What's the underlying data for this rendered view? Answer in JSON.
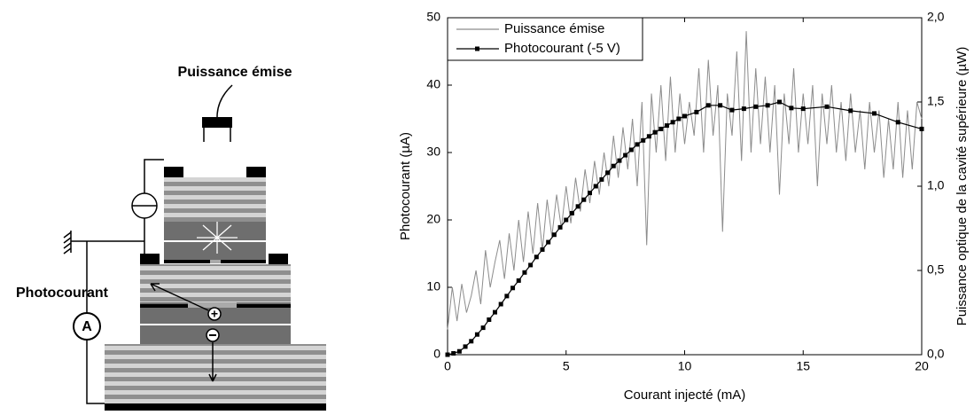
{
  "diagram": {
    "top_label": "Puissance émise",
    "left_label": "Photocourant",
    "meter_label": "A"
  },
  "chart_data": {
    "type": "line",
    "xlabel": "Courant injecté (mA)",
    "ylabel": "Photocourant (µA)",
    "y2label": "Puissance optique de la cavité supérieure (µW)",
    "xlim": [
      0,
      20
    ],
    "xticks": [
      0,
      5,
      10,
      15,
      20
    ],
    "ylim": [
      0,
      50
    ],
    "yticks": [
      0,
      10,
      20,
      30,
      40,
      50
    ],
    "y2lim": [
      0,
      2
    ],
    "y2ticks": [
      {
        "value": 0,
        "label": "0,0"
      },
      {
        "value": 0.5,
        "label": "0,5"
      },
      {
        "value": 1,
        "label": "1,0"
      },
      {
        "value": 1.5,
        "label": "1,5"
      },
      {
        "value": 2,
        "label": "2,0"
      }
    ],
    "legend": "upper left",
    "series": [
      {
        "name": "Puissance émise",
        "color": "#8c8c8c",
        "axis": "y2",
        "marker": false,
        "x": [
          0,
          0.2,
          0.4,
          0.6,
          0.8,
          1,
          1.2,
          1.4,
          1.6,
          1.8,
          2,
          2.2,
          2.4,
          2.6,
          2.8,
          3,
          3.2,
          3.4,
          3.6,
          3.8,
          4,
          4.2,
          4.4,
          4.6,
          4.8,
          5,
          5.2,
          5.4,
          5.6,
          5.8,
          6,
          6.2,
          6.4,
          6.6,
          6.8,
          7,
          7.2,
          7.4,
          7.6,
          7.8,
          8,
          8.2,
          8.4,
          8.6,
          8.8,
          9,
          9.2,
          9.4,
          9.6,
          9.8,
          10,
          10.2,
          10.4,
          10.6,
          10.8,
          11,
          11.2,
          11.4,
          11.6,
          11.8,
          12,
          12.2,
          12.4,
          12.6,
          12.8,
          13,
          13.2,
          13.4,
          13.6,
          13.8,
          14,
          14.2,
          14.4,
          14.6,
          14.8,
          15,
          15.2,
          15.4,
          15.6,
          15.8,
          16,
          16.2,
          16.4,
          16.6,
          16.8,
          17,
          17.2,
          17.4,
          17.6,
          17.8,
          18,
          18.2,
          18.4,
          18.6,
          18.8,
          19,
          19.2,
          19.4,
          19.6,
          19.8,
          20
        ],
        "values": [
          0.15,
          0.4,
          0.2,
          0.42,
          0.25,
          0.35,
          0.5,
          0.3,
          0.62,
          0.4,
          0.55,
          0.68,
          0.45,
          0.72,
          0.5,
          0.8,
          0.55,
          0.85,
          0.6,
          0.9,
          0.62,
          0.92,
          0.7,
          0.95,
          0.75,
          1.0,
          0.78,
          1.05,
          0.85,
          1.1,
          0.9,
          1.15,
          0.95,
          1.2,
          1.0,
          1.3,
          1.05,
          1.35,
          1.1,
          1.4,
          1.0,
          1.5,
          0.65,
          1.55,
          1.2,
          1.6,
          1.15,
          1.65,
          1.2,
          1.55,
          1.25,
          1.5,
          1.3,
          1.7,
          1.2,
          1.75,
          1.3,
          1.6,
          0.73,
          1.55,
          1.3,
          1.8,
          1.15,
          1.92,
          1.2,
          1.7,
          1.25,
          1.65,
          1.2,
          1.6,
          0.95,
          1.55,
          1.25,
          1.7,
          1.2,
          1.55,
          1.25,
          1.6,
          1.0,
          1.55,
          1.25,
          1.6,
          1.2,
          1.5,
          1.15,
          1.55,
          1.2,
          1.45,
          1.1,
          1.5,
          1.2,
          1.45,
          1.05,
          1.4,
          1.1,
          1.5,
          1.05,
          1.45,
          1.1,
          1.5,
          1.4
        ]
      },
      {
        "name": "Photocourant (-5 V)",
        "color": "#000000",
        "axis": "y",
        "marker": true,
        "x": [
          0,
          0.25,
          0.5,
          0.75,
          1,
          1.25,
          1.5,
          1.75,
          2,
          2.25,
          2.5,
          2.75,
          3,
          3.25,
          3.5,
          3.75,
          4,
          4.25,
          4.5,
          4.75,
          5,
          5.25,
          5.5,
          5.75,
          6,
          6.25,
          6.5,
          6.75,
          7,
          7.25,
          7.5,
          7.75,
          8,
          8.25,
          8.5,
          8.75,
          9,
          9.25,
          9.5,
          9.75,
          10,
          10.5,
          11,
          11.5,
          12,
          12.5,
          13,
          13.5,
          14,
          14.5,
          15,
          16,
          17,
          18,
          19,
          20
        ],
        "values": [
          0,
          0.2,
          0.5,
          1.2,
          2,
          3,
          4,
          5.2,
          6.3,
          7.5,
          8.7,
          9.9,
          11,
          12.2,
          13.3,
          14.5,
          15.6,
          16.7,
          17.8,
          18.9,
          20,
          21,
          22,
          23,
          24,
          25,
          26,
          27,
          28,
          28.8,
          29.6,
          30.4,
          31.2,
          31.8,
          32.4,
          33,
          33.5,
          34,
          34.5,
          35,
          35.4,
          36,
          37,
          37,
          36.3,
          36.5,
          36.8,
          37,
          37.5,
          36.6,
          36.5,
          36.8,
          36.2,
          35.8,
          34.5,
          33.5
        ]
      }
    ]
  }
}
